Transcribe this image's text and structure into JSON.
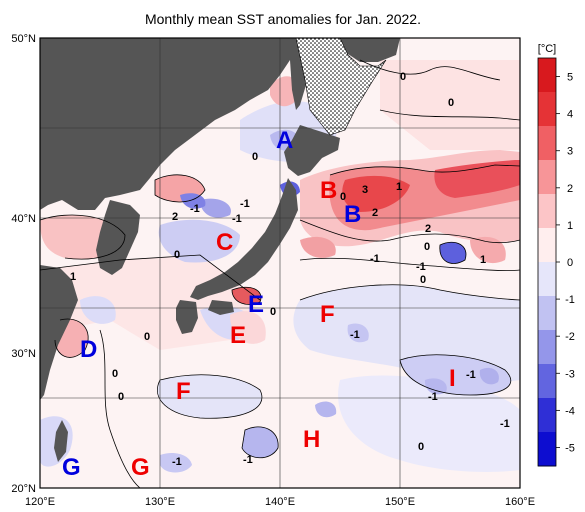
{
  "title": "Monthly mean SST anomalies for Jan. 2022.",
  "lat_labels": [
    "50°N",
    "40°N",
    "30°N",
    "20°N"
  ],
  "lon_labels": [
    "120°E",
    "130°E",
    "140°E",
    "150°E",
    "160°E"
  ],
  "colorbar": {
    "unit": "[°C]",
    "ticks": [
      "5",
      "4",
      "3",
      "2",
      "1",
      "0",
      "-1",
      "-2",
      "-3",
      "-4",
      "-5"
    ],
    "colors": [
      "#d8191e",
      "#e53336",
      "#f06064",
      "#f79598",
      "#fcc5c7",
      "#ffeeee",
      "#e6e6fa",
      "#c1c2f2",
      "#9496ea",
      "#6265e0",
      "#2f2fd6",
      "#0d0dd0"
    ]
  },
  "colors": {
    "land": "#555555",
    "positive_label": "#ee0000",
    "negative_label": "#0000dd"
  },
  "regions": [
    {
      "label": "A",
      "color": "blue"
    },
    {
      "label": "B",
      "color": "red"
    },
    {
      "label": "B",
      "color": "blue"
    },
    {
      "label": "C",
      "color": "red"
    },
    {
      "label": "D",
      "color": "blue"
    },
    {
      "label": "E",
      "color": "blue"
    },
    {
      "label": "E",
      "color": "red"
    },
    {
      "label": "F",
      "color": "red"
    },
    {
      "label": "F",
      "color": "red"
    },
    {
      "label": "G",
      "color": "blue"
    },
    {
      "label": "G",
      "color": "red"
    },
    {
      "label": "H",
      "color": "red"
    },
    {
      "label": "I",
      "color": "red"
    }
  ],
  "contour_labels": [
    "0",
    "0",
    "2",
    "-1",
    "-1",
    "-1",
    "0",
    "0",
    "1",
    "0",
    "3",
    "1",
    "2",
    "2",
    "0",
    "-1",
    "-1",
    "0",
    "1",
    "0",
    "0",
    "-1",
    "0",
    "-1",
    "-1",
    "0",
    "-1",
    "-1",
    "-1",
    "0"
  ]
}
